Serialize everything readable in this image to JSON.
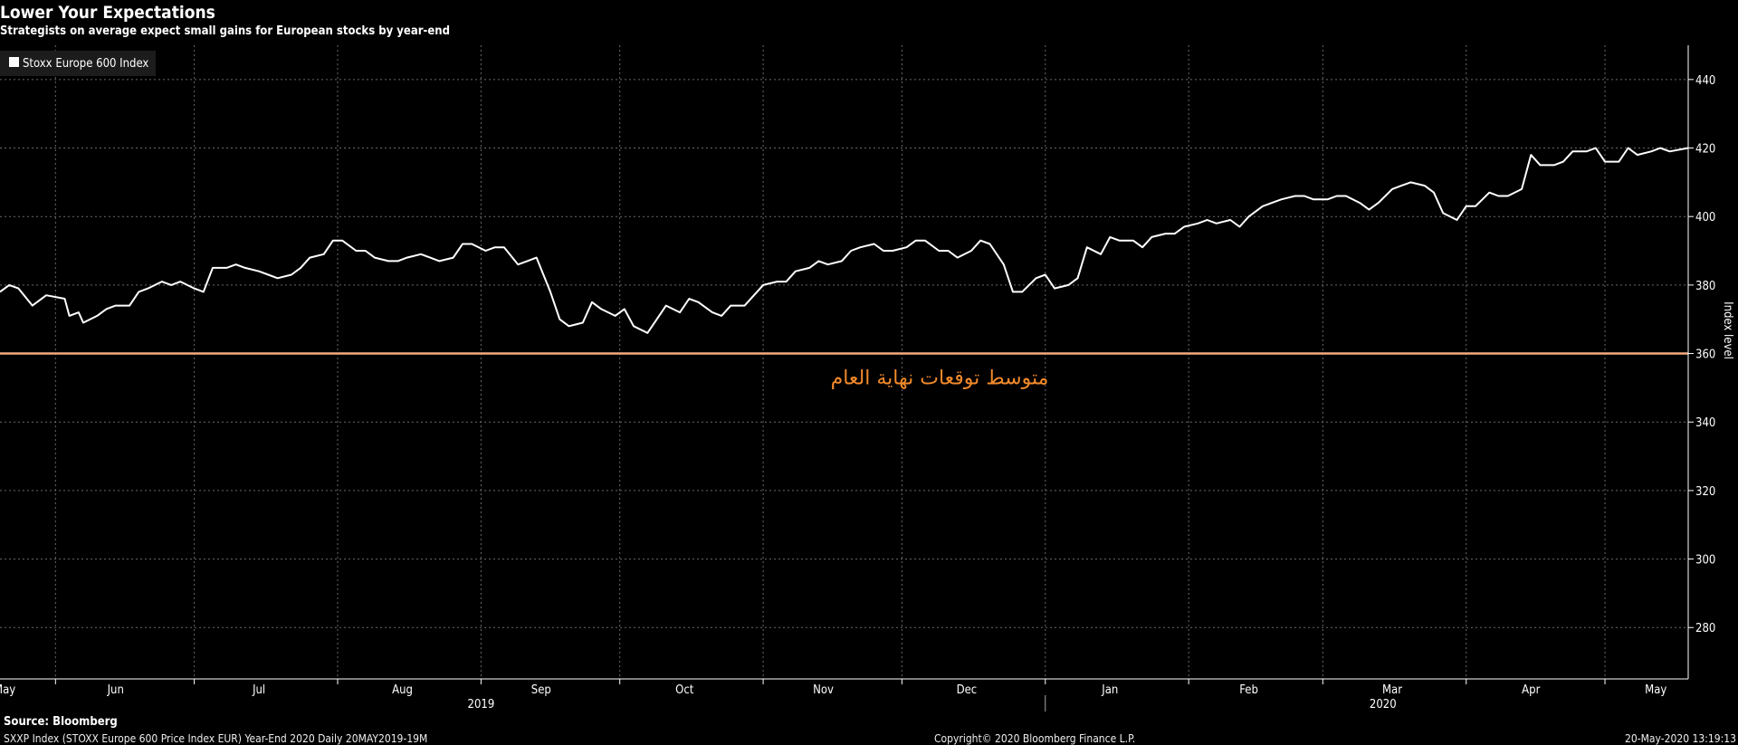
{
  "header": {
    "title": "Lower Your Expectations",
    "subtitle": "Strategists on average expect small gains for European stocks by year-end"
  },
  "footer": {
    "source": "Source: Bloomberg",
    "left": "SXXP Index (STOXX Europe 600 Price Index EUR) Year-End 2020  Daily 20MAY2019-19M",
    "center": "Copyright© 2020 Bloomberg Finance L.P.",
    "right": "20-May-2020 13:19:13"
  },
  "chart_data": {
    "type": "line",
    "ylabel": "Index level",
    "ylim": [
      265,
      450
    ],
    "yticks": [
      280,
      300,
      320,
      340,
      360,
      380,
      400,
      420,
      440
    ],
    "xlim": [
      "2019-05-20",
      "2020-05-19"
    ],
    "month_labels": [
      {
        "date": "2019-05-21",
        "label": "May"
      },
      {
        "date": "2019-06-14",
        "label": "Jun"
      },
      {
        "date": "2019-07-15",
        "label": "Jul"
      },
      {
        "date": "2019-08-15",
        "label": "Aug"
      },
      {
        "date": "2019-09-14",
        "label": "Sep"
      },
      {
        "date": "2019-10-15",
        "label": "Oct"
      },
      {
        "date": "2019-11-14",
        "label": "Nov"
      },
      {
        "date": "2019-12-15",
        "label": "Dec"
      },
      {
        "date": "2020-01-15",
        "label": "Jan"
      },
      {
        "date": "2020-02-14",
        "label": "Feb"
      },
      {
        "date": "2020-03-16",
        "label": "Mar"
      },
      {
        "date": "2020-04-15",
        "label": "Apr"
      },
      {
        "date": "2020-05-12",
        "label": "May"
      }
    ],
    "year_labels": [
      {
        "date": "2019-09-01",
        "label": "2019"
      },
      {
        "date": "2020-03-14",
        "label": "2020"
      }
    ],
    "year_separator": "2020-01-01",
    "legend": {
      "label": "Stoxx Europe 600 Index",
      "position": "top-left"
    },
    "reference_line": {
      "value": 360,
      "label": "متوسط توقعات نهاية العام",
      "color": "#f5a97f",
      "label_color": "#f28a2a"
    },
    "line_color": "#ffffff",
    "grid": true,
    "series": [
      {
        "name": "Stoxx Europe 600 Index",
        "points": [
          [
            "2019-05-20",
            378
          ],
          [
            "2019-05-22",
            380
          ],
          [
            "2019-05-24",
            379
          ],
          [
            "2019-05-27",
            374
          ],
          [
            "2019-05-30",
            377
          ],
          [
            "2019-06-03",
            376
          ],
          [
            "2019-06-04",
            371
          ],
          [
            "2019-06-06",
            372
          ],
          [
            "2019-06-07",
            369
          ],
          [
            "2019-06-10",
            371
          ],
          [
            "2019-06-12",
            373
          ],
          [
            "2019-06-14",
            374
          ],
          [
            "2019-06-17",
            374
          ],
          [
            "2019-06-19",
            378
          ],
          [
            "2019-06-21",
            379
          ],
          [
            "2019-06-24",
            381
          ],
          [
            "2019-06-26",
            380
          ],
          [
            "2019-06-28",
            381
          ],
          [
            "2019-07-01",
            379
          ],
          [
            "2019-07-03",
            378
          ],
          [
            "2019-07-05",
            385
          ],
          [
            "2019-07-08",
            385
          ],
          [
            "2019-07-10",
            386
          ],
          [
            "2019-07-12",
            385
          ],
          [
            "2019-07-15",
            384
          ],
          [
            "2019-07-17",
            383
          ],
          [
            "2019-07-19",
            382
          ],
          [
            "2019-07-22",
            383
          ],
          [
            "2019-07-24",
            385
          ],
          [
            "2019-07-26",
            388
          ],
          [
            "2019-07-29",
            389
          ],
          [
            "2019-07-31",
            393
          ],
          [
            "2019-08-02",
            393
          ],
          [
            "2019-08-05",
            390
          ],
          [
            "2019-08-07",
            390
          ],
          [
            "2019-08-09",
            388
          ],
          [
            "2019-08-12",
            387
          ],
          [
            "2019-08-14",
            387
          ],
          [
            "2019-08-16",
            388
          ],
          [
            "2019-08-19",
            389
          ],
          [
            "2019-08-21",
            388
          ],
          [
            "2019-08-23",
            387
          ],
          [
            "2019-08-26",
            388
          ],
          [
            "2019-08-28",
            392
          ],
          [
            "2019-08-30",
            392
          ],
          [
            "2019-09-02",
            390
          ],
          [
            "2019-09-04",
            391
          ],
          [
            "2019-09-06",
            391
          ],
          [
            "2019-09-09",
            386
          ],
          [
            "2019-09-11",
            387
          ],
          [
            "2019-09-13",
            388
          ],
          [
            "2019-09-16",
            378
          ],
          [
            "2019-09-18",
            370
          ],
          [
            "2019-09-20",
            368
          ],
          [
            "2019-09-23",
            369
          ],
          [
            "2019-09-25",
            375
          ],
          [
            "2019-09-27",
            373
          ],
          [
            "2019-09-30",
            371
          ],
          [
            "2019-10-02",
            373
          ],
          [
            "2019-10-04",
            368
          ],
          [
            "2019-10-07",
            366
          ],
          [
            "2019-10-09",
            370
          ],
          [
            "2019-10-11",
            374
          ],
          [
            "2019-10-14",
            372
          ],
          [
            "2019-10-16",
            376
          ],
          [
            "2019-10-18",
            375
          ],
          [
            "2019-10-21",
            372
          ],
          [
            "2019-10-23",
            371
          ],
          [
            "2019-10-25",
            374
          ],
          [
            "2019-10-28",
            374
          ],
          [
            "2019-10-30",
            377
          ],
          [
            "2019-11-01",
            380
          ],
          [
            "2019-11-04",
            381
          ],
          [
            "2019-11-06",
            381
          ],
          [
            "2019-11-08",
            384
          ],
          [
            "2019-11-11",
            385
          ],
          [
            "2019-11-13",
            387
          ],
          [
            "2019-11-15",
            386
          ],
          [
            "2019-11-18",
            387
          ],
          [
            "2019-11-20",
            390
          ],
          [
            "2019-11-22",
            391
          ],
          [
            "2019-11-25",
            392
          ],
          [
            "2019-11-27",
            390
          ],
          [
            "2019-11-29",
            390
          ],
          [
            "2019-12-02",
            391
          ],
          [
            "2019-12-04",
            393
          ],
          [
            "2019-12-06",
            393
          ],
          [
            "2019-12-09",
            390
          ],
          [
            "2019-12-11",
            390
          ],
          [
            "2019-12-13",
            388
          ],
          [
            "2019-12-16",
            390
          ],
          [
            "2019-12-18",
            393
          ],
          [
            "2019-12-20",
            392
          ],
          [
            "2019-12-23",
            386
          ],
          [
            "2019-12-25",
            378
          ],
          [
            "2019-12-27",
            378
          ],
          [
            "2019-12-30",
            382
          ],
          [
            "2020-01-01",
            383
          ],
          [
            "2020-01-03",
            379
          ],
          [
            "2020-01-06",
            380
          ],
          [
            "2020-01-08",
            382
          ],
          [
            "2020-01-10",
            391
          ],
          [
            "2020-01-13",
            389
          ],
          [
            "2020-01-15",
            394
          ],
          [
            "2020-01-17",
            393
          ],
          [
            "2020-01-20",
            393
          ],
          [
            "2020-01-22",
            391
          ],
          [
            "2020-01-24",
            394
          ],
          [
            "2020-01-27",
            395
          ],
          [
            "2020-01-29",
            395
          ],
          [
            "2020-01-31",
            397
          ],
          [
            "2020-02-03",
            398
          ],
          [
            "2020-02-05",
            399
          ],
          [
            "2020-02-07",
            398
          ],
          [
            "2020-02-10",
            399
          ],
          [
            "2020-02-12",
            397
          ],
          [
            "2020-02-14",
            400
          ],
          [
            "2020-02-17",
            403
          ],
          [
            "2020-02-19",
            404
          ],
          [
            "2020-02-21",
            405
          ],
          [
            "2020-02-24",
            406
          ],
          [
            "2020-02-26",
            406
          ],
          [
            "2020-02-28",
            405
          ],
          [
            "2020-03-02",
            405
          ],
          [
            "2020-03-04",
            406
          ],
          [
            "2020-03-06",
            406
          ],
          [
            "2020-03-09",
            404
          ],
          [
            "2020-03-11",
            402
          ],
          [
            "2020-03-13",
            404
          ],
          [
            "2020-03-16",
            408
          ],
          [
            "2020-03-18",
            409
          ],
          [
            "2020-03-20",
            410
          ],
          [
            "2020-03-23",
            409
          ],
          [
            "2020-03-25",
            407
          ],
          [
            "2020-03-27",
            401
          ],
          [
            "2020-03-30",
            399
          ],
          [
            "2020-04-01",
            403
          ],
          [
            "2020-04-03",
            403
          ],
          [
            "2020-04-06",
            407
          ],
          [
            "2020-04-08",
            406
          ],
          [
            "2020-04-10",
            406
          ],
          [
            "2020-04-13",
            408
          ],
          [
            "2020-04-15",
            418
          ],
          [
            "2020-04-17",
            415
          ],
          [
            "2020-04-20",
            415
          ],
          [
            "2020-04-22",
            416
          ],
          [
            "2020-04-24",
            419
          ],
          [
            "2020-04-27",
            419
          ],
          [
            "2020-04-29",
            420
          ],
          [
            "2020-05-01",
            416
          ],
          [
            "2020-05-04",
            416
          ],
          [
            "2020-05-06",
            420
          ],
          [
            "2020-05-08",
            418
          ],
          [
            "2020-05-11",
            419
          ],
          [
            "2020-05-13",
            420
          ],
          [
            "2020-05-15",
            419
          ],
          [
            "2020-05-19",
            420
          ]
        ]
      }
    ]
  }
}
